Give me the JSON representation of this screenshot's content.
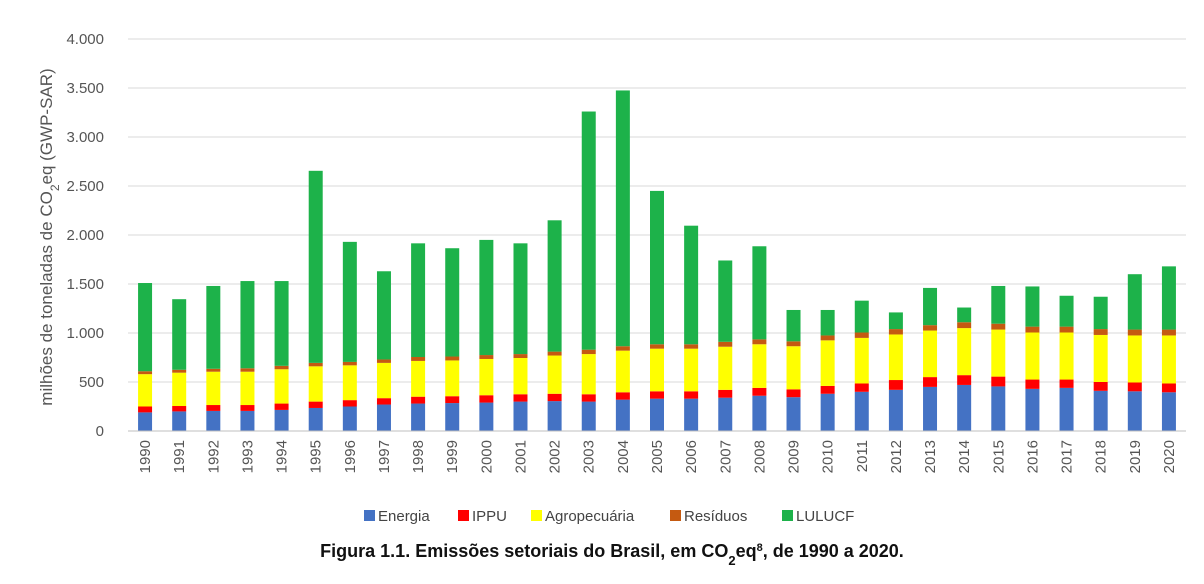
{
  "chart_data": {
    "type": "bar",
    "stacked": true,
    "ylabel": "milhões de toneladas de CO2eq (GWP-SAR)",
    "ylabel_parts": {
      "pre": "milhões de toneladas de CO",
      "sub": "2",
      "post": "eq (GWP-SAR)"
    },
    "ylim": [
      0,
      4000
    ],
    "yticks": [
      0,
      500,
      1000,
      1500,
      2000,
      2500,
      3000,
      3500,
      4000
    ],
    "ytick_labels": [
      "0",
      "500",
      "1.000",
      "1.500",
      "2.000",
      "2.500",
      "3.000",
      "3.500",
      "4.000"
    ],
    "grid": true,
    "legend_position": "bottom",
    "categories": [
      "1990",
      "1991",
      "1992",
      "1993",
      "1994",
      "1995",
      "1996",
      "1997",
      "1998",
      "1999",
      "2000",
      "2001",
      "2002",
      "2003",
      "2004",
      "2005",
      "2006",
      "2007",
      "2008",
      "2009",
      "2010",
      "2011",
      "2012",
      "2013",
      "2014",
      "2015",
      "2016",
      "2017",
      "2018",
      "2019",
      "2020"
    ],
    "series": [
      {
        "name": "Energia",
        "color": "#4472C4",
        "values": [
          190,
          200,
          205,
          205,
          215,
          235,
          250,
          270,
          280,
          285,
          290,
          300,
          305,
          300,
          320,
          330,
          330,
          340,
          360,
          345,
          380,
          400,
          420,
          450,
          470,
          455,
          430,
          440,
          410,
          405,
          395
        ]
      },
      {
        "name": "IPPU",
        "color": "#FF0000",
        "values": [
          60,
          55,
          60,
          60,
          65,
          65,
          65,
          65,
          70,
          70,
          75,
          75,
          75,
          75,
          75,
          75,
          75,
          80,
          80,
          80,
          80,
          85,
          100,
          100,
          100,
          100,
          95,
          85,
          90,
          90,
          90
        ]
      },
      {
        "name": "Agropecuária",
        "color": "#FFFF00",
        "values": [
          330,
          340,
          340,
          340,
          350,
          360,
          355,
          360,
          365,
          365,
          370,
          370,
          390,
          410,
          425,
          435,
          435,
          440,
          445,
          440,
          465,
          465,
          465,
          475,
          480,
          480,
          480,
          480,
          480,
          480,
          490
        ]
      },
      {
        "name": "Resíduos",
        "color": "#C55A11",
        "values": [
          30,
          30,
          30,
          35,
          35,
          35,
          35,
          35,
          40,
          40,
          40,
          40,
          40,
          45,
          45,
          45,
          45,
          50,
          50,
          50,
          50,
          55,
          55,
          55,
          60,
          60,
          60,
          60,
          60,
          60,
          60
        ]
      },
      {
        "name": "LULUCF",
        "color": "#1DB24A",
        "values": [
          900,
          720,
          845,
          890,
          865,
          1960,
          1225,
          900,
          1160,
          1105,
          1175,
          1130,
          1340,
          2430,
          2610,
          1565,
          1210,
          830,
          950,
          320,
          260,
          325,
          170,
          380,
          150,
          385,
          410,
          315,
          330,
          565,
          645
        ]
      }
    ]
  },
  "caption": {
    "prefix": "Figura 1.1. Emissões setoriais do Brasil, em CO",
    "sub": "2",
    "mid": "eq",
    "sup": "8",
    "suffix": ", de 1990 a 2020."
  }
}
